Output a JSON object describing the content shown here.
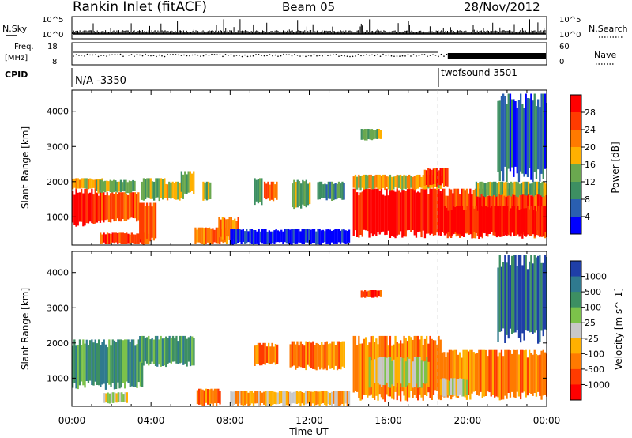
{
  "header": {
    "title": "Rankin Inlet (fitACF)",
    "beam": "Beam 05",
    "date": "28/Nov/2012"
  },
  "sky_panel": {
    "left_label": "N.Sky",
    "right_label": "N.Search",
    "left_ticks": [
      "10^5",
      "10^0"
    ],
    "right_ticks": [
      "10^5",
      "10^0"
    ]
  },
  "freq_panel": {
    "left_label_line1": "Freq.",
    "left_label_line2": "[MHz]",
    "right_label": "Nave",
    "left_ticks": [
      "18",
      "8"
    ],
    "right_ticks": [
      "60",
      "0"
    ]
  },
  "cpid_panel": {
    "label": "CPID",
    "segments": [
      {
        "text": "N/A -3350",
        "start_hour": 0
      },
      {
        "text": "twofsound 3501",
        "start_hour": 18.5
      }
    ]
  },
  "chart_data": [
    {
      "type": "heatmap",
      "title": "Power",
      "ylabel": "Slant Range [km]",
      "xlabel": "",
      "xlim": [
        0,
        24
      ],
      "ylim": [
        200,
        4600
      ],
      "yticks": [
        "1000",
        "2000",
        "3000",
        "4000"
      ],
      "colorbar": {
        "label": "Power [dB]",
        "ticks": [
          "28",
          "24",
          "20",
          "16",
          "12",
          "8",
          "4"
        ],
        "colors": [
          "#ff0000",
          "#ff3b00",
          "#ff7a00",
          "#ffb000",
          "#6aa84f",
          "#3d8f62",
          "#2a5fb0",
          "#0000ff"
        ]
      },
      "blobs": [
        {
          "x0": 0,
          "x1": 1.3,
          "y0": 800,
          "y1": 1800,
          "level": 0
        },
        {
          "x0": 0,
          "x1": 1.5,
          "y0": 1800,
          "y1": 2100,
          "level": 3
        },
        {
          "x0": 1.3,
          "x1": 3.4,
          "y0": 900,
          "y1": 1700,
          "level": 1
        },
        {
          "x0": 1.2,
          "x1": 3.2,
          "y0": 1700,
          "y1": 2050,
          "level": 4
        },
        {
          "x0": 1.4,
          "x1": 3.8,
          "y0": 250,
          "y1": 550,
          "level": 1
        },
        {
          "x0": 3.5,
          "x1": 4.7,
          "y0": 1500,
          "y1": 2100,
          "level": 4
        },
        {
          "x0": 3.4,
          "x1": 4.2,
          "y0": 300,
          "y1": 1400,
          "level": 2
        },
        {
          "x0": 4.7,
          "x1": 5.6,
          "y0": 1500,
          "y1": 2000,
          "level": 3
        },
        {
          "x0": 5.5,
          "x1": 6.2,
          "y0": 1700,
          "y1": 2300,
          "level": 4
        },
        {
          "x0": 6.2,
          "x1": 7.8,
          "y0": 250,
          "y1": 700,
          "level": 2
        },
        {
          "x0": 6.6,
          "x1": 7.0,
          "y0": 1500,
          "y1": 2000,
          "level": 4
        },
        {
          "x0": 7.4,
          "x1": 8.4,
          "y0": 400,
          "y1": 1000,
          "level": 2
        },
        {
          "x0": 9.2,
          "x1": 9.6,
          "y0": 1400,
          "y1": 2100,
          "level": 5
        },
        {
          "x0": 9.7,
          "x1": 10.4,
          "y0": 1500,
          "y1": 2000,
          "level": 1
        },
        {
          "x0": 11.1,
          "x1": 12.0,
          "y0": 1300,
          "y1": 2050,
          "level": 4
        },
        {
          "x0": 12.4,
          "x1": 13.8,
          "y0": 1500,
          "y1": 2000,
          "level": 5
        },
        {
          "x0": 14.2,
          "x1": 18.6,
          "y0": 500,
          "y1": 1800,
          "level": 0
        },
        {
          "x0": 14.2,
          "x1": 18.6,
          "y0": 1800,
          "y1": 2200,
          "level": 3
        },
        {
          "x0": 14.6,
          "x1": 15.6,
          "y0": 3200,
          "y1": 3500,
          "level": 4
        },
        {
          "x0": 17.8,
          "x1": 19.0,
          "y0": 1900,
          "y1": 2400,
          "level": 1
        },
        {
          "x0": 18.6,
          "x1": 24,
          "y0": 500,
          "y1": 1800,
          "level": 1
        },
        {
          "x0": 18.8,
          "x1": 24,
          "y0": 500,
          "y1": 1300,
          "level": 0
        },
        {
          "x0": 20.4,
          "x1": 24,
          "y0": 1600,
          "y1": 2000,
          "level": 4
        },
        {
          "x0": 21.5,
          "x1": 24,
          "y0": 2200,
          "y1": 4500,
          "level": 6
        },
        {
          "x0": 8.0,
          "x1": 14.0,
          "y0": 250,
          "y1": 650,
          "level": 7
        }
      ]
    },
    {
      "type": "heatmap",
      "title": "Velocity",
      "ylabel": "Slant Range [km]",
      "xlabel": "Time UT",
      "xlim": [
        0,
        24
      ],
      "ylim": [
        200,
        4600
      ],
      "yticks": [
        "1000",
        "2000",
        "3000",
        "4000"
      ],
      "xticks": [
        "00:00",
        "04:00",
        "08:00",
        "12:00",
        "16:00",
        "20:00",
        "00:00"
      ],
      "colorbar": {
        "label": "Velocity [m s^-1]",
        "ticks": [
          "1000",
          "500",
          "100",
          "25",
          "-25",
          "-100",
          "-500",
          "-1000"
        ],
        "colors": [
          "#1f3fa8",
          "#2f7a8f",
          "#3d8f62",
          "#7cc24a",
          "#c8c8c8",
          "#ffb000",
          "#ff7a00",
          "#ff3b00",
          "#ff0000"
        ]
      },
      "blobs": [
        {
          "x0": 0,
          "x1": 3.6,
          "y0": 800,
          "y1": 2100,
          "level": 2
        },
        {
          "x0": 1.6,
          "x1": 2.8,
          "y0": 300,
          "y1": 600,
          "level": 4
        },
        {
          "x0": 3.4,
          "x1": 6.2,
          "y0": 1400,
          "y1": 2200,
          "level": 2
        },
        {
          "x0": 6.3,
          "x1": 7.5,
          "y0": 250,
          "y1": 700,
          "level": 6
        },
        {
          "x0": 8.0,
          "x1": 14.0,
          "y0": 250,
          "y1": 650,
          "level": 5
        },
        {
          "x0": 9.2,
          "x1": 10.4,
          "y0": 1400,
          "y1": 2000,
          "level": 6
        },
        {
          "x0": 11.0,
          "x1": 13.8,
          "y0": 1300,
          "y1": 2050,
          "level": 6
        },
        {
          "x0": 14.2,
          "x1": 18.6,
          "y0": 500,
          "y1": 2200,
          "level": 6
        },
        {
          "x0": 15.0,
          "x1": 18.0,
          "y0": 800,
          "y1": 1600,
          "level": 4
        },
        {
          "x0": 14.6,
          "x1": 15.6,
          "y0": 3300,
          "y1": 3500,
          "level": 7
        },
        {
          "x0": 18.6,
          "x1": 24,
          "y0": 500,
          "y1": 1800,
          "level": 6
        },
        {
          "x0": 18.6,
          "x1": 20.0,
          "y0": 500,
          "y1": 1000,
          "level": 4
        },
        {
          "x0": 21.5,
          "x1": 24,
          "y0": 2200,
          "y1": 4500,
          "level": 1
        }
      ]
    }
  ]
}
